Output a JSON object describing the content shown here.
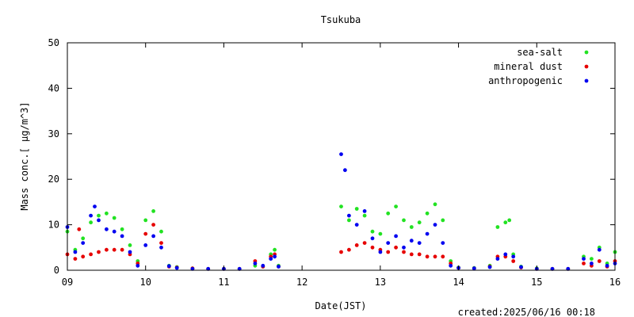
{
  "chart_data": {
    "type": "scatter",
    "title": "Tsukuba",
    "xlabel": "Date(JST)",
    "ylabel": "Mass conc.[ μg/m^3]",
    "footer": "created:2025/06/16 00:18",
    "xlim": [
      9,
      16
    ],
    "ylim": [
      0,
      50
    ],
    "x_ticks": [
      "09",
      "10",
      "11",
      "12",
      "13",
      "14",
      "15",
      "16"
    ],
    "y_ticks": [
      "0",
      "10",
      "20",
      "30",
      "40",
      "50"
    ],
    "grid": false,
    "legend_position": "top-right",
    "x_unit": "day of month (June 2025, JST)",
    "series": [
      {
        "name": "sea-salt",
        "color": "#22e222",
        "x": [
          9.0,
          9.1,
          9.2,
          9.3,
          9.4,
          9.5,
          9.6,
          9.7,
          9.8,
          9.9,
          10.0,
          10.1,
          10.2,
          10.3,
          10.4,
          10.6,
          10.8,
          11.0,
          11.2,
          11.4,
          11.5,
          11.6,
          11.65,
          11.7,
          12.5,
          12.6,
          12.7,
          12.8,
          12.9,
          13.0,
          13.1,
          13.2,
          13.3,
          13.4,
          13.5,
          13.6,
          13.7,
          13.8,
          13.9,
          14.0,
          14.2,
          14.4,
          14.5,
          14.6,
          14.65,
          14.7,
          14.8,
          15.0,
          15.2,
          15.4,
          15.6,
          15.7,
          15.8,
          15.9,
          16.0
        ],
        "values": [
          8.5,
          4.5,
          7.0,
          10.5,
          12.0,
          12.5,
          11.5,
          9.0,
          5.5,
          2.0,
          11.0,
          13.0,
          8.5,
          1.0,
          0.7,
          0.4,
          0.3,
          0.3,
          0.3,
          1.0,
          0.8,
          3.5,
          4.5,
          1.0,
          14.0,
          11.0,
          13.5,
          12.0,
          8.5,
          8.0,
          12.5,
          14.0,
          11.0,
          9.5,
          10.5,
          12.5,
          14.5,
          11.0,
          2.0,
          0.6,
          0.5,
          1.0,
          9.5,
          10.5,
          11.0,
          3.5,
          0.8,
          0.4,
          0.3,
          0.3,
          3.0,
          2.5,
          5.0,
          1.5,
          4.0
        ]
      },
      {
        "name": "mineral dust",
        "color": "#e60000",
        "x": [
          9.0,
          9.1,
          9.15,
          9.2,
          9.3,
          9.4,
          9.5,
          9.6,
          9.7,
          9.8,
          9.9,
          10.0,
          10.1,
          10.2,
          10.3,
          10.4,
          10.6,
          10.8,
          11.0,
          11.2,
          11.4,
          11.5,
          11.6,
          11.65,
          11.7,
          12.5,
          12.6,
          12.7,
          12.8,
          12.9,
          13.0,
          13.1,
          13.2,
          13.3,
          13.4,
          13.5,
          13.6,
          13.7,
          13.8,
          13.9,
          14.0,
          14.2,
          14.4,
          14.5,
          14.6,
          14.7,
          14.8,
          15.0,
          15.2,
          15.4,
          15.6,
          15.7,
          15.8,
          15.9,
          16.0
        ],
        "values": [
          3.5,
          2.5,
          9.0,
          3.0,
          3.5,
          4.0,
          4.5,
          4.5,
          4.5,
          3.5,
          1.5,
          8.0,
          10.0,
          6.0,
          0.8,
          0.6,
          0.4,
          0.3,
          0.3,
          0.3,
          2.0,
          0.8,
          3.0,
          3.5,
          0.8,
          4.0,
          4.5,
          5.5,
          6.0,
          5.0,
          4.5,
          4.0,
          5.0,
          4.0,
          3.5,
          3.5,
          3.0,
          3.0,
          3.0,
          1.5,
          0.5,
          0.4,
          0.8,
          3.0,
          3.0,
          2.0,
          0.6,
          0.3,
          0.3,
          0.3,
          1.5,
          1.0,
          2.0,
          0.8,
          2.0
        ]
      },
      {
        "name": "anthropogenic",
        "color": "#0000f0",
        "x": [
          9.0,
          9.1,
          9.2,
          9.3,
          9.35,
          9.4,
          9.5,
          9.6,
          9.7,
          9.8,
          9.9,
          10.0,
          10.1,
          10.2,
          10.3,
          10.4,
          10.6,
          10.8,
          11.0,
          11.2,
          11.4,
          11.5,
          11.6,
          11.65,
          11.7,
          12.5,
          12.55,
          12.6,
          12.7,
          12.8,
          12.9,
          13.0,
          13.1,
          13.2,
          13.3,
          13.4,
          13.5,
          13.6,
          13.7,
          13.8,
          13.9,
          14.0,
          14.2,
          14.4,
          14.5,
          14.6,
          14.7,
          14.8,
          15.0,
          15.2,
          15.4,
          15.6,
          15.7,
          15.8,
          15.9,
          16.0
        ],
        "values": [
          9.5,
          4.0,
          6.0,
          12.0,
          14.0,
          11.0,
          9.0,
          8.5,
          7.5,
          4.0,
          1.0,
          5.5,
          7.5,
          5.0,
          0.9,
          0.5,
          0.3,
          0.3,
          0.3,
          0.3,
          1.5,
          1.0,
          2.5,
          3.0,
          0.8,
          25.5,
          22.0,
          12.0,
          10.0,
          13.0,
          7.0,
          4.0,
          6.0,
          7.5,
          5.0,
          6.5,
          6.0,
          8.0,
          10.0,
          6.0,
          1.0,
          0.5,
          0.4,
          0.7,
          2.5,
          3.5,
          3.0,
          0.7,
          0.3,
          0.3,
          0.3,
          2.5,
          1.5,
          4.5,
          1.0,
          1.5
        ]
      }
    ]
  }
}
